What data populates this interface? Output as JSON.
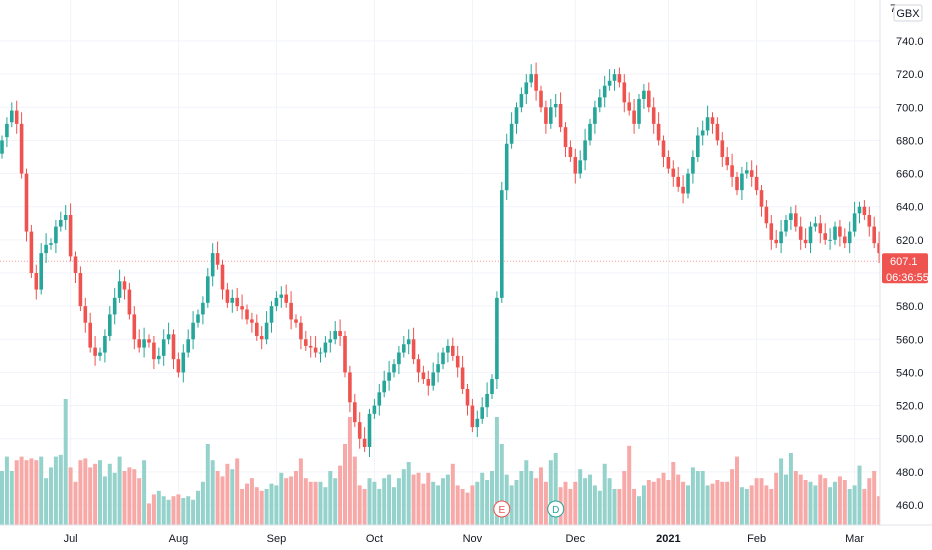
{
  "chart_data": {
    "type": "candlestick",
    "title": "",
    "currency": "GBX",
    "ylim": [
      450,
      760
    ],
    "y_ticks": [
      "740.0",
      "720.0",
      "700.0",
      "680.0",
      "660.0",
      "640.0",
      "620.0",
      "600.0",
      "580.0",
      "560.0",
      "540.0",
      "520.0",
      "500.0",
      "480.0",
      "460.0"
    ],
    "y_tick_values": [
      740,
      720,
      700,
      680,
      660,
      640,
      620,
      600,
      580,
      560,
      540,
      520,
      500,
      480,
      460
    ],
    "y_top_partial": "760.0",
    "x_ticks": [
      {
        "label": "Jul",
        "index": 14
      },
      {
        "label": "Aug",
        "index": 36
      },
      {
        "label": "Sep",
        "index": 56
      },
      {
        "label": "Oct",
        "index": 76
      },
      {
        "label": "Nov",
        "index": 96
      },
      {
        "label": "Dec",
        "index": 117
      },
      {
        "label": "2021",
        "index": 136
      },
      {
        "label": "Feb",
        "index": 154
      },
      {
        "label": "Mar",
        "index": 174
      }
    ],
    "last_price": {
      "value": 607.1,
      "label": "607.1",
      "countdown": "06:36:55",
      "color": "#ef5350"
    },
    "events": [
      {
        "type": "earnings",
        "symbol": "E",
        "index": 102,
        "color": "#ef5350"
      },
      {
        "type": "dividend",
        "symbol": "D",
        "index": 113,
        "color": "#26a69a"
      }
    ],
    "colors": {
      "up": "#26a69a",
      "down": "#ef5350",
      "vol_up": "#95d2cb",
      "vol_down": "#f7a9a7",
      "grid": "#f0f3fa"
    },
    "ohlc_close": [
      680,
      690,
      698,
      690,
      660,
      625,
      600,
      590,
      612,
      617,
      618,
      628,
      632,
      635,
      610,
      600,
      580,
      570,
      555,
      550,
      552,
      562,
      575,
      585,
      595,
      590,
      575,
      560,
      555,
      560,
      558,
      548,
      550,
      560,
      563,
      548,
      540,
      552,
      560,
      570,
      575,
      582,
      598,
      612,
      605,
      590,
      582,
      585,
      580,
      578,
      572,
      570,
      562,
      560,
      570,
      580,
      585,
      587,
      582,
      572,
      570,
      560,
      556,
      555,
      552,
      552,
      558,
      560,
      565,
      562,
      540,
      522,
      510,
      500,
      495,
      515,
      520,
      528,
      535,
      540,
      545,
      552,
      557,
      560,
      548,
      540,
      536,
      532,
      540,
      545,
      552,
      556,
      550,
      543,
      530,
      520,
      507,
      512,
      519,
      527,
      536,
      585,
      650,
      678,
      690,
      700,
      708,
      715,
      720,
      710,
      700,
      690,
      700,
      702,
      688,
      676,
      670,
      660,
      668,
      680,
      690,
      700,
      706,
      713,
      716,
      720,
      715,
      703,
      698,
      690,
      705,
      710,
      700,
      690,
      680,
      670,
      663,
      658,
      652,
      648,
      660,
      670,
      683,
      686,
      694,
      690,
      680,
      670,
      665,
      658,
      650,
      660,
      662,
      658,
      650,
      640,
      630,
      620,
      618,
      625,
      632,
      636,
      628,
      620,
      618,
      628,
      630,
      624,
      620,
      620,
      628,
      622,
      618,
      625,
      636,
      640,
      635,
      628,
      618,
      612,
      607.1
    ],
    "ohlc_open": [
      672,
      682,
      691,
      698,
      690,
      660,
      625,
      600,
      590,
      612,
      617,
      618,
      628,
      632,
      635,
      610,
      600,
      580,
      570,
      555,
      550,
      552,
      562,
      575,
      585,
      595,
      590,
      575,
      560,
      555,
      560,
      558,
      548,
      550,
      560,
      563,
      548,
      540,
      552,
      560,
      570,
      575,
      582,
      598,
      612,
      605,
      590,
      582,
      585,
      580,
      578,
      572,
      570,
      562,
      560,
      570,
      580,
      585,
      587,
      582,
      572,
      570,
      560,
      556,
      555,
      552,
      552,
      558,
      560,
      565,
      562,
      540,
      522,
      510,
      500,
      495,
      515,
      520,
      528,
      535,
      540,
      545,
      552,
      557,
      560,
      548,
      540,
      536,
      532,
      540,
      545,
      552,
      556,
      550,
      543,
      530,
      520,
      507,
      512,
      519,
      527,
      536,
      585,
      650,
      678,
      690,
      700,
      708,
      715,
      720,
      710,
      700,
      690,
      700,
      702,
      688,
      676,
      670,
      660,
      668,
      680,
      690,
      700,
      706,
      713,
      716,
      720,
      715,
      703,
      698,
      690,
      705,
      710,
      700,
      690,
      680,
      670,
      663,
      658,
      652,
      648,
      660,
      670,
      683,
      686,
      694,
      690,
      680,
      670,
      665,
      658,
      650,
      660,
      662,
      658,
      650,
      640,
      630,
      620,
      618,
      625,
      632,
      636,
      628,
      620,
      618,
      628,
      630,
      624,
      620,
      620,
      628,
      622,
      618,
      625,
      636,
      640,
      635,
      628,
      618,
      612
    ],
    "volume": [
      30,
      38,
      30,
      36,
      38,
      36,
      37,
      36,
      38,
      26,
      32,
      38,
      39,
      70,
      32,
      24,
      36,
      37,
      32,
      34,
      36,
      27,
      34,
      29,
      38,
      30,
      32,
      31,
      26,
      36,
      12,
      17,
      19,
      16,
      14,
      16,
      17,
      15,
      16,
      14,
      19,
      24,
      45,
      36,
      30,
      27,
      34,
      31,
      37,
      20,
      23,
      26,
      21,
      19,
      20,
      23,
      22,
      29,
      26,
      27,
      30,
      37,
      26,
      24,
      24,
      24,
      21,
      30,
      26,
      33,
      45,
      60,
      38,
      22,
      20,
      26,
      24,
      20,
      26,
      28,
      21,
      26,
      31,
      35,
      28,
      29,
      23,
      29,
      24,
      22,
      26,
      28,
      34,
      22,
      20,
      18,
      22,
      24,
      29,
      25,
      30,
      60,
      45,
      28,
      22,
      25,
      30,
      36,
      30,
      26,
      32,
      24,
      36,
      40,
      21,
      24,
      20,
      24,
      31,
      26,
      28,
      22,
      19,
      34,
      26,
      20,
      20,
      30,
      44,
      20,
      16,
      22,
      25,
      24,
      26,
      29,
      25,
      35,
      28,
      24,
      22,
      32,
      30,
      30,
      22,
      23,
      25,
      24,
      24,
      31,
      38,
      21,
      20,
      22,
      26,
      26,
      22,
      20,
      29,
      37,
      28,
      40,
      30,
      28,
      25,
      24,
      22,
      28,
      26,
      21,
      24,
      27,
      25,
      20,
      22,
      33,
      20,
      26,
      30,
      16,
      10
    ]
  }
}
